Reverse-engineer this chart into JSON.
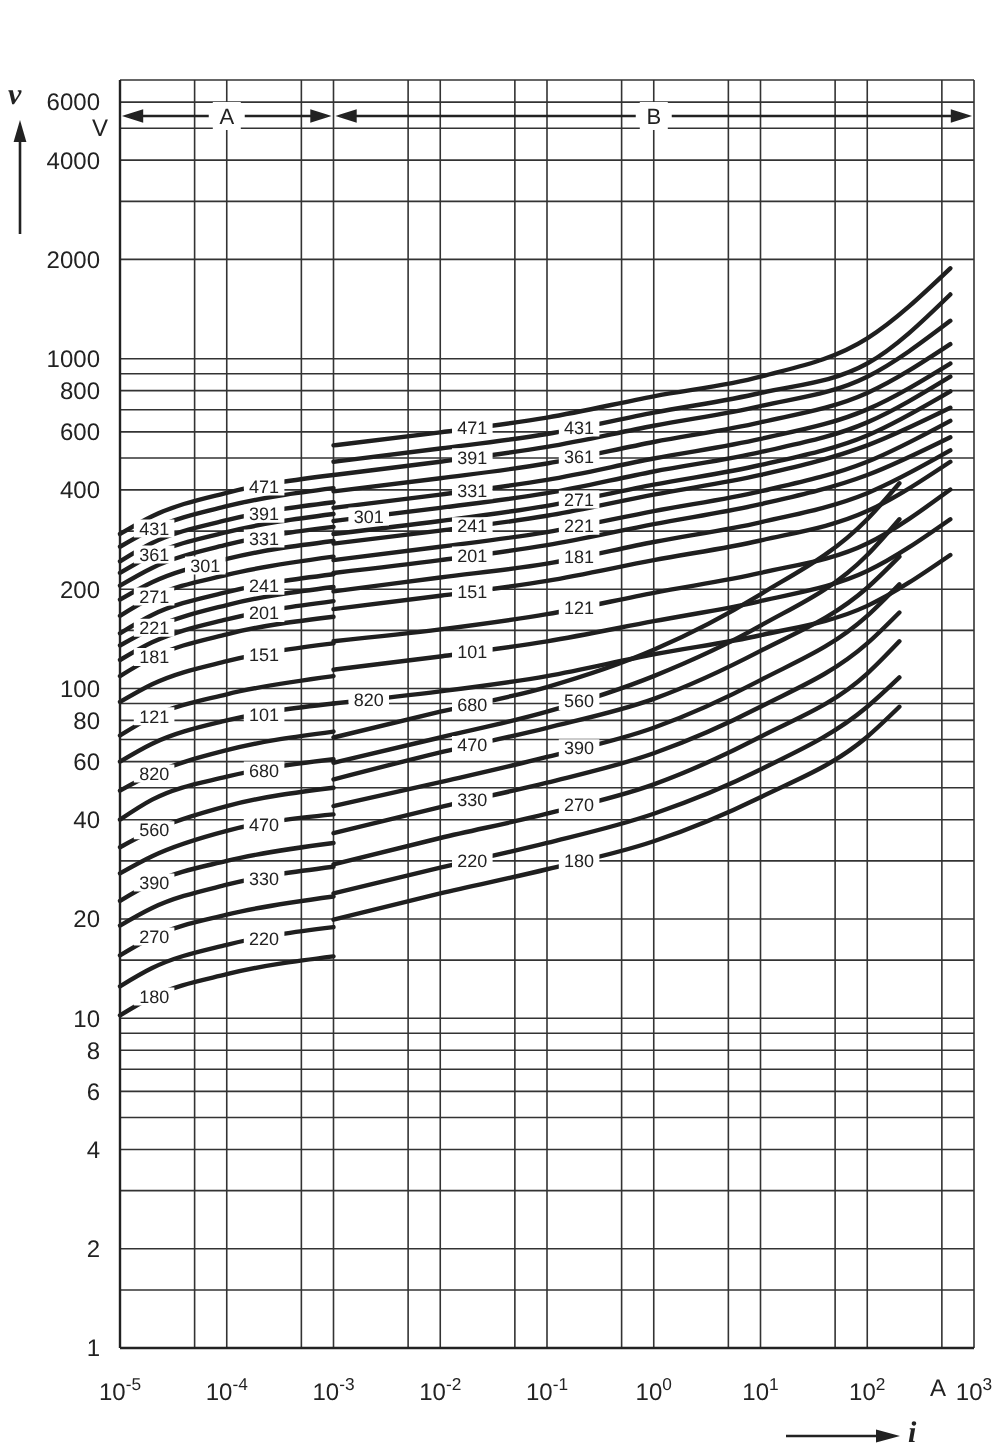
{
  "chart_data": {
    "type": "line",
    "xlabel": "i",
    "ylabel": "v",
    "annotations": [
      "V",
      "A",
      "A",
      "B"
    ],
    "log": "xy",
    "xlim": [
      1e-05,
      1000
    ],
    "ylim": [
      1,
      7000
    ],
    "xticks": [
      {
        "value": 1e-05,
        "label": "10$^{-5}$"
      },
      {
        "value": 5e-05,
        "label": null
      },
      {
        "value": 0.0001,
        "label": "10$^{-4}$"
      },
      {
        "value": 0.0005,
        "label": null
      },
      {
        "value": 0.001,
        "label": "10$^{-3}$"
      },
      {
        "value": 0.005,
        "label": null
      },
      {
        "value": 0.01,
        "label": "10$^{-2}$"
      },
      {
        "value": 0.05,
        "label": null
      },
      {
        "value": 0.1,
        "label": "10$^{-1}$"
      },
      {
        "value": 0.5,
        "label": null
      },
      {
        "value": 1,
        "label": "10$^{0}$"
      },
      {
        "value": 5,
        "label": null
      },
      {
        "value": 10,
        "label": "10$^{1}$"
      },
      {
        "value": 50,
        "label": null
      },
      {
        "value": 100,
        "label": "10$^{2}$"
      },
      {
        "value": 500,
        "label": null
      },
      {
        "value": 1000,
        "label": "10$^{3}$"
      }
    ],
    "yticks": [
      1,
      {
        "value": 1.5,
        "label": null
      },
      2,
      {
        "value": 3,
        "label": null
      },
      4,
      {
        "value": 5,
        "label": null
      },
      6,
      {
        "value": 7,
        "label": null
      },
      8,
      {
        "value": 9,
        "label": null
      },
      10,
      {
        "value": 15,
        "label": null
      },
      20,
      {
        "value": 30,
        "label": null
      },
      40,
      {
        "value": 50,
        "label": null
      },
      60,
      {
        "value": 70,
        "label": null
      },
      80,
      {
        "value": 90,
        "label": null
      },
      100,
      {
        "value": 150,
        "label": null
      },
      200,
      {
        "value": 300,
        "label": null
      },
      400,
      {
        "value": 500,
        "label": null
      },
      600,
      {
        "value": 700,
        "label": null
      },
      800,
      {
        "value": 900,
        "label": null
      },
      1000,
      2000,
      {
        "value": 3000,
        "label": null
      },
      4000,
      {
        "value": 5000,
        "label": null
      },
      6000
    ],
    "grid": true,
    "marker": "none",
    "line_style": "solid",
    "series": [
      {
        "name": "471",
        "color": "#1f1f1f",
        "x": [
          1e-05,
          2e-05,
          0.0001,
          0.001
        ],
        "values": [
          294,
          333,
          392,
          444
        ]
      },
      {
        "name": "431",
        "color": "#1f1f1f",
        "x": [
          1e-05,
          2e-05,
          0.0001,
          0.001
        ],
        "values": [
          269,
          304,
          357,
          405
        ]
      },
      {
        "name": "391",
        "color": "#1f1f1f",
        "x": [
          1e-05,
          2e-05,
          0.0001,
          0.001
        ],
        "values": [
          243,
          276,
          324,
          367
        ]
      },
      {
        "name": "361",
        "color": "#1f1f1f",
        "x": [
          1e-05,
          2e-05,
          0.0001,
          0.001
        ],
        "values": [
          224,
          254,
          298,
          338
        ]
      },
      {
        "name": "331",
        "color": "#1f1f1f",
        "x": [
          1e-05,
          2e-05,
          0.0001,
          0.001
        ],
        "values": [
          205,
          232,
          273,
          309
        ]
      },
      {
        "name": "301",
        "color": "#1f1f1f",
        "x": [
          1e-05,
          2e-05,
          0.0001,
          0.001
        ],
        "values": [
          186,
          210,
          247,
          280
        ]
      },
      {
        "name": "271",
        "color": "#1f1f1f",
        "x": [
          1e-05,
          2e-05,
          0.0001,
          0.001
        ],
        "values": [
          166,
          189,
          221,
          251
        ]
      },
      {
        "name": "241",
        "color": "#1f1f1f",
        "x": [
          1e-05,
          2e-05,
          0.0001,
          0.001
        ],
        "values": [
          147,
          167,
          196,
          222
        ]
      },
      {
        "name": "221",
        "color": "#1f1f1f",
        "x": [
          1e-05,
          2e-05,
          0.0001,
          0.001
        ],
        "values": [
          135,
          152,
          179,
          203
        ]
      },
      {
        "name": "201",
        "color": "#1f1f1f",
        "x": [
          1e-05,
          2e-05,
          0.0001,
          0.001
        ],
        "values": [
          122,
          138,
          162,
          184
        ]
      },
      {
        "name": "181",
        "color": "#1f1f1f",
        "x": [
          1e-05,
          2e-05,
          0.0001,
          0.001
        ],
        "values": [
          109,
          124,
          146,
          165
        ]
      },
      {
        "name": "151",
        "color": "#1f1f1f",
        "x": [
          1e-05,
          2e-05,
          0.0001,
          0.001
        ],
        "values": [
          91,
          103,
          121,
          137
        ]
      },
      {
        "name": "121",
        "color": "#1f1f1f",
        "x": [
          1e-05,
          2e-05,
          0.0001,
          0.001
        ],
        "values": [
          72,
          82,
          96,
          109
        ]
      },
      {
        "name": "101",
        "color": "#1f1f1f",
        "x": [
          1e-05,
          2e-05,
          0.0001,
          0.001
        ],
        "values": [
          60,
          68,
          80,
          90
        ]
      },
      {
        "name": "820",
        "color": "#1f1f1f",
        "x": [
          1e-05,
          2e-05,
          0.0001,
          0.001
        ],
        "values": [
          49,
          55,
          65,
          74
        ]
      },
      {
        "name": "680",
        "color": "#1f1f1f",
        "x": [
          1e-05,
          2e-05,
          0.0001,
          0.001
        ],
        "values": [
          40,
          46,
          54,
          61
        ]
      },
      {
        "name": "560",
        "color": "#1f1f1f",
        "x": [
          1e-05,
          2e-05,
          0.0001,
          0.001
        ],
        "values": [
          33,
          37,
          44,
          50
        ]
      },
      {
        "name": "470",
        "color": "#1f1f1f",
        "x": [
          1e-05,
          2e-05,
          0.0001,
          0.001
        ],
        "values": [
          27.5,
          31,
          37,
          41.5
        ]
      },
      {
        "name": "390",
        "color": "#1f1f1f",
        "x": [
          1e-05,
          2e-05,
          0.0001,
          0.001
        ],
        "values": [
          22.7,
          25.7,
          30,
          34
        ]
      },
      {
        "name": "330",
        "color": "#1f1f1f",
        "x": [
          1e-05,
          2e-05,
          0.0001,
          0.001
        ],
        "values": [
          19.1,
          21.6,
          25.4,
          28.8
        ]
      },
      {
        "name": "270",
        "color": "#1f1f1f",
        "x": [
          1e-05,
          2e-05,
          0.0001,
          0.001
        ],
        "values": [
          15.5,
          17.6,
          20.6,
          23.4
        ]
      },
      {
        "name": "220",
        "color": "#1f1f1f",
        "x": [
          1e-05,
          2e-05,
          0.0001,
          0.001
        ],
        "values": [
          12.5,
          14.2,
          16.7,
          18.9
        ]
      },
      {
        "name": "180",
        "color": "#1f1f1f",
        "x": [
          1e-05,
          2e-05,
          0.0001,
          0.001
        ],
        "values": [
          10.2,
          11.6,
          13.6,
          15.4
        ]
      },
      {
        "name": "471",
        "color": "#1f1f1f",
        "x": [
          0.001,
          0.01,
          0.1,
          1,
          10,
          100,
          600
        ],
        "values": [
          546,
          598,
          663,
          769,
          882,
          1153,
          1880
        ]
      },
      {
        "name": "431",
        "color": "#1f1f1f",
        "x": [
          0.001,
          0.01,
          0.1,
          1,
          10,
          100,
          600
        ],
        "values": [
          487,
          534,
          591,
          686,
          787,
          967,
          1566
        ]
      },
      {
        "name": "391",
        "color": "#1f1f1f",
        "x": [
          0.001,
          0.01,
          0.1,
          1,
          10,
          100,
          600
        ],
        "values": [
          444,
          487,
          540,
          626,
          718,
          882,
          1303
        ]
      },
      {
        "name": "361",
        "color": "#1f1f1f",
        "x": [
          0.001,
          0.01,
          0.1,
          1,
          10,
          100,
          600
        ],
        "values": [
          396,
          434,
          481,
          559,
          641,
          787,
          1107
        ]
      },
      {
        "name": "331",
        "color": "#1f1f1f",
        "x": [
          0.001,
          0.01,
          0.1,
          1,
          10,
          100,
          600
        ],
        "values": [
          353,
          387,
          429,
          498,
          571,
          702,
          967
        ]
      },
      {
        "name": "301",
        "color": "#1f1f1f",
        "x": [
          0.001,
          0.01,
          0.1,
          1,
          10,
          100,
          600
        ],
        "values": [
          322,
          353,
          391,
          455,
          521,
          641,
          882
        ]
      },
      {
        "name": "271",
        "color": "#1f1f1f",
        "x": [
          0.001,
          0.01,
          0.1,
          1,
          10,
          100,
          600
        ],
        "values": [
          294,
          322,
          358,
          415,
          476,
          585,
          796
        ]
      },
      {
        "name": "241",
        "color": "#1f1f1f",
        "x": [
          0.001,
          0.01,
          0.1,
          1,
          10,
          100,
          600
        ],
        "values": [
          275,
          301,
          334,
          387,
          444,
          546,
          710
        ]
      },
      {
        "name": "221",
        "color": "#1f1f1f",
        "x": [
          0.001,
          0.01,
          0.1,
          1,
          10,
          100,
          600
        ],
        "values": [
          245,
          269,
          298,
          345,
          396,
          487,
          648
        ]
      },
      {
        "name": "201",
        "color": "#1f1f1f",
        "x": [
          0.001,
          0.01,
          0.1,
          1,
          10,
          100,
          600
        ],
        "values": [
          224,
          245,
          272,
          315,
          362,
          444,
          578
        ]
      },
      {
        "name": "181",
        "color": "#1f1f1f",
        "x": [
          0.001,
          0.01,
          0.1,
          1,
          10,
          100,
          600
        ],
        "values": [
          197,
          217,
          239,
          278,
          319,
          391,
          527
        ]
      },
      {
        "name": "151",
        "color": "#1f1f1f",
        "x": [
          0.001,
          0.01,
          0.1,
          1,
          10,
          100,
          600
        ],
        "values": [
          174,
          191,
          212,
          245,
          281,
          345,
          487
        ]
      },
      {
        "name": "121",
        "color": "#1f1f1f",
        "x": [
          0.001,
          0.01,
          0.1,
          1,
          10,
          100,
          600
        ],
        "values": [
          139,
          151,
          168,
          195,
          224,
          275,
          401
        ]
      },
      {
        "name": "101",
        "color": "#1f1f1f",
        "x": [
          0.001,
          0.01,
          0.1,
          1,
          10,
          100,
          600
        ],
        "values": [
          114,
          125,
          139,
          160,
          184,
          227,
          326
        ]
      },
      {
        "name": "820",
        "color": "#1f1f1f",
        "x": [
          0.001,
          0.01,
          0.1,
          1,
          10,
          100,
          600
        ],
        "values": [
          90,
          98,
          109,
          127,
          145,
          178,
          254
        ]
      },
      {
        "name": "680",
        "color": "#1f1f1f",
        "x": [
          0.001,
          0.01,
          0.1,
          1,
          10,
          100,
          200
        ],
        "values": [
          71,
          85,
          101,
          131,
          193,
          326,
          419
        ]
      },
      {
        "name": "560",
        "color": "#1f1f1f",
        "x": [
          0.001,
          0.01,
          0.1,
          1,
          10,
          100,
          200
        ],
        "values": [
          59.5,
          71,
          85,
          109,
          155,
          254,
          326
        ]
      },
      {
        "name": "470",
        "color": "#1f1f1f",
        "x": [
          0.001,
          0.01,
          0.1,
          1,
          10,
          100,
          200
        ],
        "values": [
          53,
          64,
          76,
          93,
          130,
          202,
          251
        ]
      },
      {
        "name": "390",
        "color": "#1f1f1f",
        "x": [
          0.001,
          0.01,
          0.1,
          1,
          10,
          100,
          200
        ],
        "values": [
          44,
          52,
          62,
          76,
          106,
          166,
          207
        ]
      },
      {
        "name": "330",
        "color": "#1f1f1f",
        "x": [
          0.001,
          0.01,
          0.1,
          1,
          10,
          100,
          200
        ],
        "values": [
          36.4,
          43.7,
          51.8,
          63.6,
          88,
          137,
          170
        ]
      },
      {
        "name": "270",
        "color": "#1f1f1f",
        "x": [
          0.001,
          0.01,
          0.1,
          1,
          10,
          100,
          200
        ],
        "values": [
          29.3,
          35.2,
          41.7,
          51.2,
          71.4,
          111,
          139
        ]
      },
      {
        "name": "220",
        "color": "#1f1f1f",
        "x": [
          0.001,
          0.01,
          0.1,
          1,
          10,
          100,
          200
        ],
        "values": [
          23.9,
          28.6,
          34,
          41.7,
          56.8,
          88,
          108
        ]
      },
      {
        "name": "180",
        "color": "#1f1f1f",
        "x": [
          0.001,
          0.01,
          0.1,
          1,
          10,
          100,
          200
        ],
        "values": [
          19.9,
          23.9,
          28.3,
          34.4,
          46.8,
          71.4,
          88
        ]
      }
    ]
  }
}
